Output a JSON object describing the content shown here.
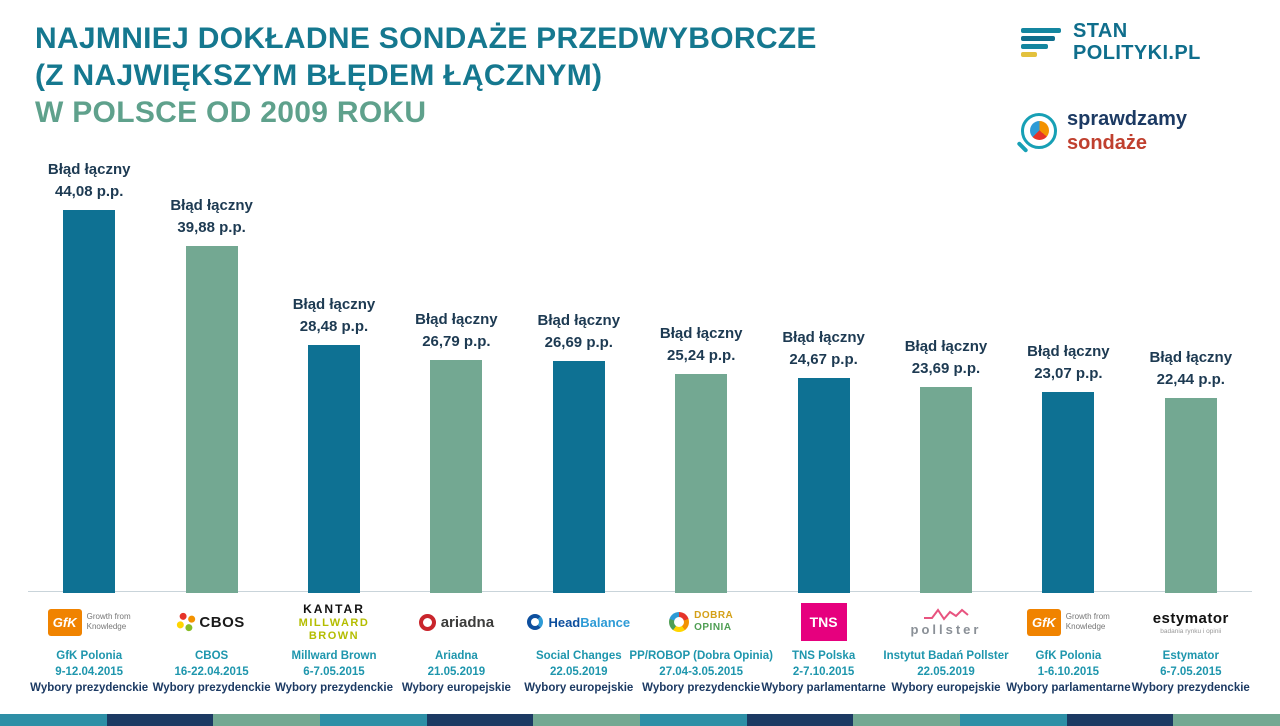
{
  "header": {
    "title_lines": [
      "NAJMNIEJ DOKŁADNE SONDAŻE PRZEDWYBORCZE",
      "(Z NAJWIĘKSZYM BŁĘDEM ŁĄCZNYM)",
      "W POLSCE OD 2009 ROKU"
    ],
    "brand_stan": {
      "line1": "STAN",
      "line2": "POLITYKI.PL"
    },
    "brand_sprawdzamy": {
      "line1": "sprawdzamy",
      "line2": "sondaże"
    }
  },
  "colors": {
    "bar_teal": "#0e7193",
    "bar_green": "#73a892",
    "title_teal": "#15788f",
    "title_green": "#5fa18c",
    "label_navy": "#1d3a52",
    "pollster_teal": "#1e96ad",
    "election_navy": "#1c3a63"
  },
  "chart_data": {
    "type": "bar",
    "title": "Najmniej dokładne sondaże przedwyborcze (z największym błędem łącznym) w Polsce od 2009 roku",
    "xlabel": "",
    "ylabel": "Błąd łączny (p.p.)",
    "ylim": [
      0,
      46
    ],
    "grid": false,
    "legend": "none",
    "categories": [
      "GfK Polonia",
      "CBOS",
      "Millward Brown",
      "Ariadna",
      "Social Changes",
      "PP/ROBOP (Dobra Opinia)",
      "TNS Polska",
      "Instytut Badań Pollster",
      "GfK Polonia",
      "Estymator"
    ],
    "values": [
      44.08,
      39.88,
      28.48,
      26.79,
      26.69,
      25.24,
      24.67,
      23.69,
      23.07,
      22.44
    ],
    "bars": [
      {
        "label_top": "Błąd łączny",
        "value_text": "44,08 p.p.",
        "value": 44.08,
        "color_key": "teal",
        "pollster": "GfK Polonia",
        "date": "9-12.04.2015",
        "election": "Wybory prezydenckie",
        "logo": "gfk"
      },
      {
        "label_top": "Błąd łączny",
        "value_text": "39,88 p.p.",
        "value": 39.88,
        "color_key": "green",
        "pollster": "CBOS",
        "date": "16-22.04.2015",
        "election": "Wybory prezydenckie",
        "logo": "cbos"
      },
      {
        "label_top": "Błąd łączny",
        "value_text": "28,48 p.p.",
        "value": 28.48,
        "color_key": "teal",
        "pollster": "Millward Brown",
        "date": "6-7.05.2015",
        "election": "Wybory prezydenckie",
        "logo": "kantar"
      },
      {
        "label_top": "Błąd łączny",
        "value_text": "26,79 p.p.",
        "value": 26.79,
        "color_key": "green",
        "pollster": "Ariadna",
        "date": "21.05.2019",
        "election": "Wybory europejskie",
        "logo": "ariadna"
      },
      {
        "label_top": "Błąd łączny",
        "value_text": "26,69 p.p.",
        "value": 26.69,
        "color_key": "teal",
        "pollster": "Social Changes",
        "date": "22.05.2019",
        "election": "Wybory europejskie",
        "logo": "headbalance"
      },
      {
        "label_top": "Błąd łączny",
        "value_text": "25,24 p.p.",
        "value": 25.24,
        "color_key": "green",
        "pollster": "PP/ROBOP (Dobra Opinia)",
        "date": "27.04-3.05.2015",
        "election": "Wybory prezydenckie",
        "logo": "dobra"
      },
      {
        "label_top": "Błąd łączny",
        "value_text": "24,67 p.p.",
        "value": 24.67,
        "color_key": "teal",
        "pollster": "TNS Polska",
        "date": "2-7.10.2015",
        "election": "Wybory parlamentarne",
        "logo": "tns"
      },
      {
        "label_top": "Błąd łączny",
        "value_text": "23,69 p.p.",
        "value": 23.69,
        "color_key": "green",
        "pollster": "Instytut Badań Pollster",
        "date": "22.05.2019",
        "election": "Wybory europejskie",
        "logo": "pollster"
      },
      {
        "label_top": "Błąd łączny",
        "value_text": "23,07 p.p.",
        "value": 23.07,
        "color_key": "teal",
        "pollster": "GfK Polonia",
        "date": "1-6.10.2015",
        "election": "Wybory parlamentarne",
        "logo": "gfk"
      },
      {
        "label_top": "Błąd łączny",
        "value_text": "22,44 p.p.",
        "value": 22.44,
        "color_key": "green",
        "pollster": "Estymator",
        "date": "6-7.05.2015",
        "election": "Wybory prezydenckie",
        "logo": "estymator"
      }
    ]
  },
  "logos": {
    "gfk": {
      "badge": "GfK",
      "sub_line1": "Growth from",
      "sub_line2": "Knowledge",
      "badge_color": "#f08300"
    },
    "cbos": {
      "text": "CBOS",
      "dot_colors": [
        "#e63329",
        "#f39200",
        "#ffd500",
        "#86bc25"
      ]
    },
    "kantar": {
      "line1": "KANTAR",
      "line2": "MILLWARD",
      "line3": "BROWN",
      "accent": "#b4bd00"
    },
    "ariadna": {
      "text": "ariadna",
      "accent": "#c9252c"
    },
    "headbalance": {
      "part1": "Head",
      "part2": "Balance",
      "color1": "#0d4f9e",
      "color2": "#2e9bd6"
    },
    "dobra": {
      "line1": "DOBRA",
      "line2": "OPINIA",
      "color1": "#d4a017",
      "color2": "#4f9e53",
      "wheel": [
        "#e63329",
        "#f39200",
        "#ffd500",
        "#4f9e53",
        "#2e9bd6"
      ]
    },
    "tns": {
      "text": "TNS",
      "badge_color": "#e6007e"
    },
    "pollster": {
      "text": "pollster",
      "accent": "#e8537f",
      "text_color": "#8a9097"
    },
    "estymator": {
      "text": "estymator",
      "sub": "badania rynku i opinii"
    }
  },
  "footer_stripe": [
    "#2e8fa6",
    "#1c3a63",
    "#73a892",
    "#2e8fa6",
    "#1c3a63",
    "#73a892",
    "#2e8fa6",
    "#1c3a63",
    "#73a892",
    "#2e8fa6",
    "#1c3a63",
    "#73a892"
  ]
}
